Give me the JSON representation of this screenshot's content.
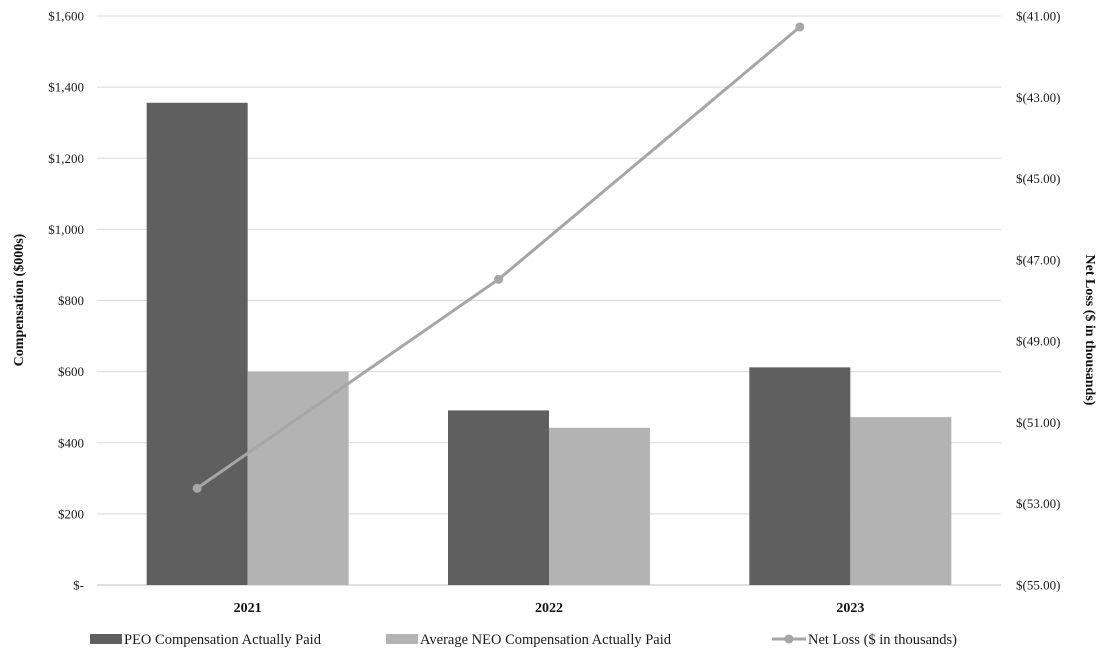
{
  "chart_data": {
    "type": "bar",
    "categories": [
      "2021",
      "2022",
      "2023"
    ],
    "series": [
      {
        "name": "PEO Compensation Actually Paid",
        "kind": "bar",
        "axis": "left",
        "color": "#5f5f5f",
        "values": [
          1356,
          491,
          612
        ]
      },
      {
        "name": "Average NEO Compensation Actually Paid",
        "kind": "bar",
        "axis": "left",
        "color": "#b3b3b3",
        "values": [
          600,
          442,
          472
        ]
      },
      {
        "name": "Net Loss ($ in thousands)",
        "kind": "line",
        "axis": "right",
        "color": "#a6a6a6",
        "values": [
          -52.62,
          -47.48,
          -41.27
        ]
      }
    ],
    "ylabel": "Compensation ($000s)",
    "ylabel_right": "Net Loss ($ in thousands)",
    "ylim": [
      0,
      1600
    ],
    "ylim_right": [
      -55,
      -41
    ],
    "yticks": [
      {
        "value": 0,
        "label": "$-"
      },
      {
        "value": 200,
        "label": "$200"
      },
      {
        "value": 400,
        "label": "$400"
      },
      {
        "value": 600,
        "label": "$600"
      },
      {
        "value": 800,
        "label": "$800"
      },
      {
        "value": 1000,
        "label": "$1,000"
      },
      {
        "value": 1200,
        "label": "$1,200"
      },
      {
        "value": 1400,
        "label": "$1,400"
      },
      {
        "value": 1600,
        "label": "$1,600"
      }
    ],
    "yticks_right": [
      {
        "value": -55,
        "label": "$(55.00)"
      },
      {
        "value": -53,
        "label": "$(53.00)"
      },
      {
        "value": -51,
        "label": "$(51.00)"
      },
      {
        "value": -49,
        "label": "$(49.00)"
      },
      {
        "value": -47,
        "label": "$(47.00)"
      },
      {
        "value": -45,
        "label": "$(45.00)"
      },
      {
        "value": -43,
        "label": "$(43.00)"
      },
      {
        "value": -41,
        "label": "$(41.00)"
      }
    ],
    "grid": true,
    "legend_position": "bottom"
  }
}
